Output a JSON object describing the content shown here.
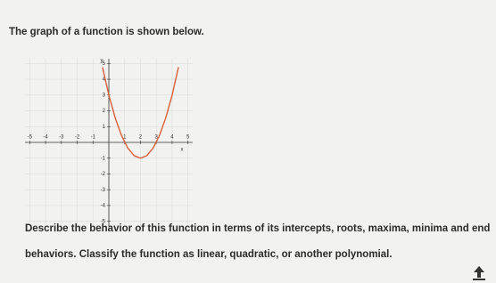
{
  "prompt": "The graph of a function is shown below.",
  "graph": {
    "type": "line",
    "x_label": "x",
    "y_label": "y",
    "x": [
      -0.4,
      0,
      0.4,
      0.8,
      1.2,
      1.6,
      2,
      2.4,
      2.8,
      3.2,
      3.6,
      4,
      4.4
    ],
    "values": [
      4.76,
      3,
      1.56,
      0.44,
      -0.36,
      -0.84,
      -1,
      -0.84,
      -0.36,
      0.44,
      1.56,
      3,
      4.76
    ],
    "color": "#d9603b",
    "xlim": [
      -5.3,
      5.3
    ],
    "ylim": [
      -5.3,
      5.3
    ],
    "xticks": [
      -5,
      -4,
      -3,
      -2,
      -1,
      1,
      2,
      3,
      4,
      5
    ],
    "yticks": [
      -5,
      -4,
      -3,
      -2,
      -1,
      1,
      2,
      3,
      4,
      5
    ],
    "grid": true
  },
  "question": [
    "Describe the behavior of this function in terms of its intercepts, roots, maxima, minima and end",
    "behaviors. Classify the function as linear, quadratic, or another polynomial."
  ]
}
